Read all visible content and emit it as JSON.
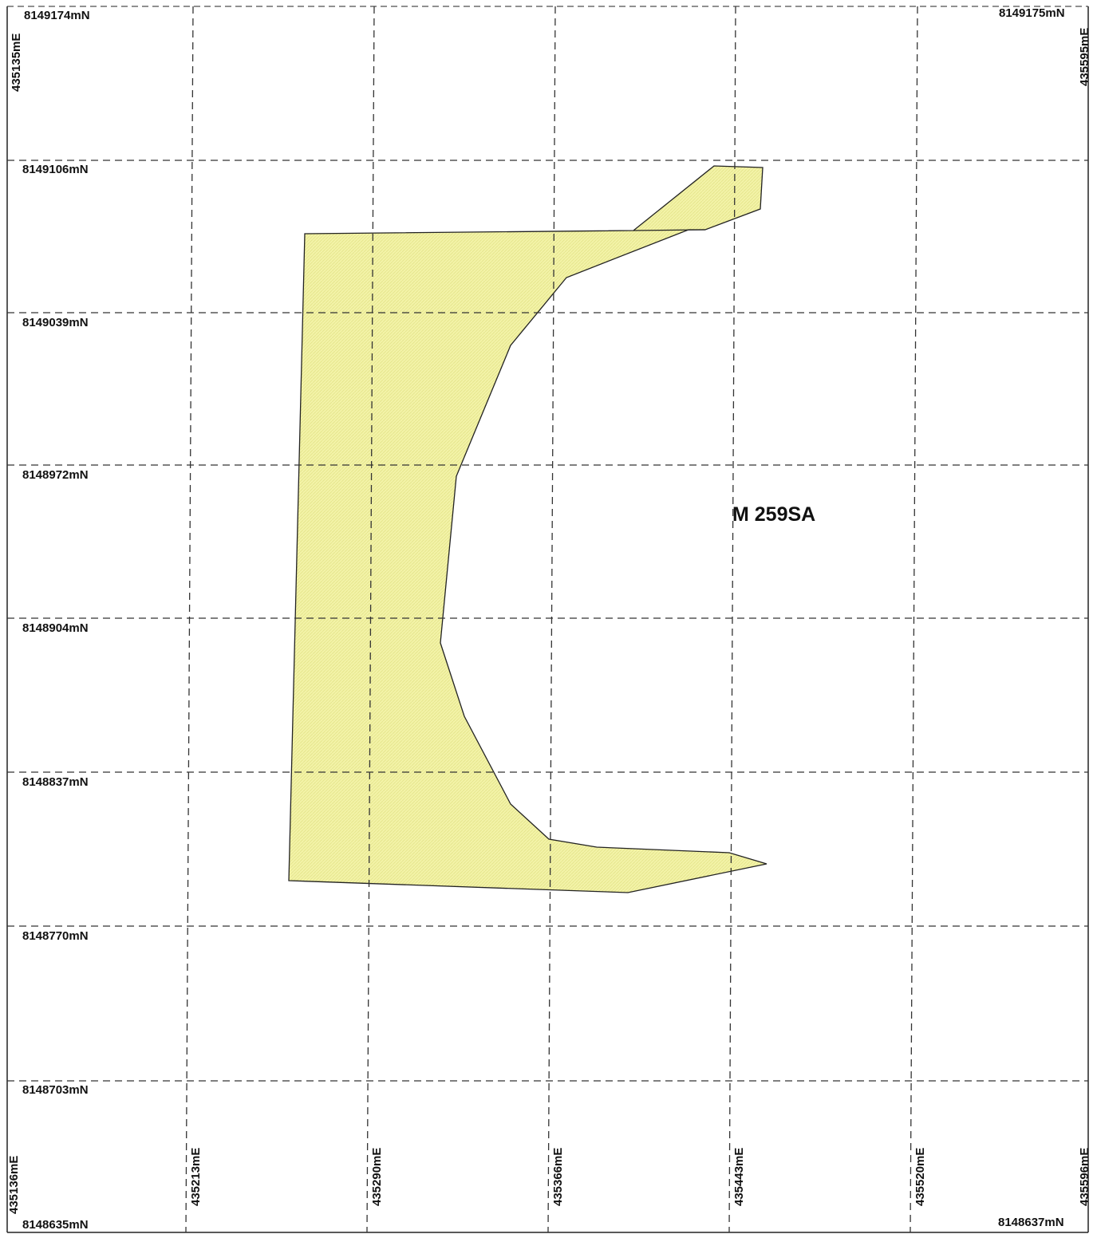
{
  "map": {
    "tenement_label": "M 259SA",
    "polygon_fill": "#f3f3a8",
    "polygon_stroke": "#222222",
    "grid_color": "#333333",
    "northing_labels": {
      "top_left": "8149174mN",
      "top_right": "8149175mN",
      "row_1": "8149106mN",
      "row_2": "8149039mN",
      "row_3": "8148972mN",
      "row_4": "8148904mN",
      "row_5": "8148837mN",
      "row_6": "8148770mN",
      "row_7": "8148703mN",
      "bottom_left": "8148635mN",
      "bottom_right": "8148637mN"
    },
    "easting_labels": {
      "top_left": "435135mE",
      "top_right": "435595mE",
      "bottom_0": "435136mE",
      "bottom_1": "435213mE",
      "bottom_2": "435290mE",
      "bottom_3": "435366mE",
      "bottom_4": "435443mE",
      "bottom_5": "435520mE",
      "bottom_6": "435596mE"
    }
  }
}
